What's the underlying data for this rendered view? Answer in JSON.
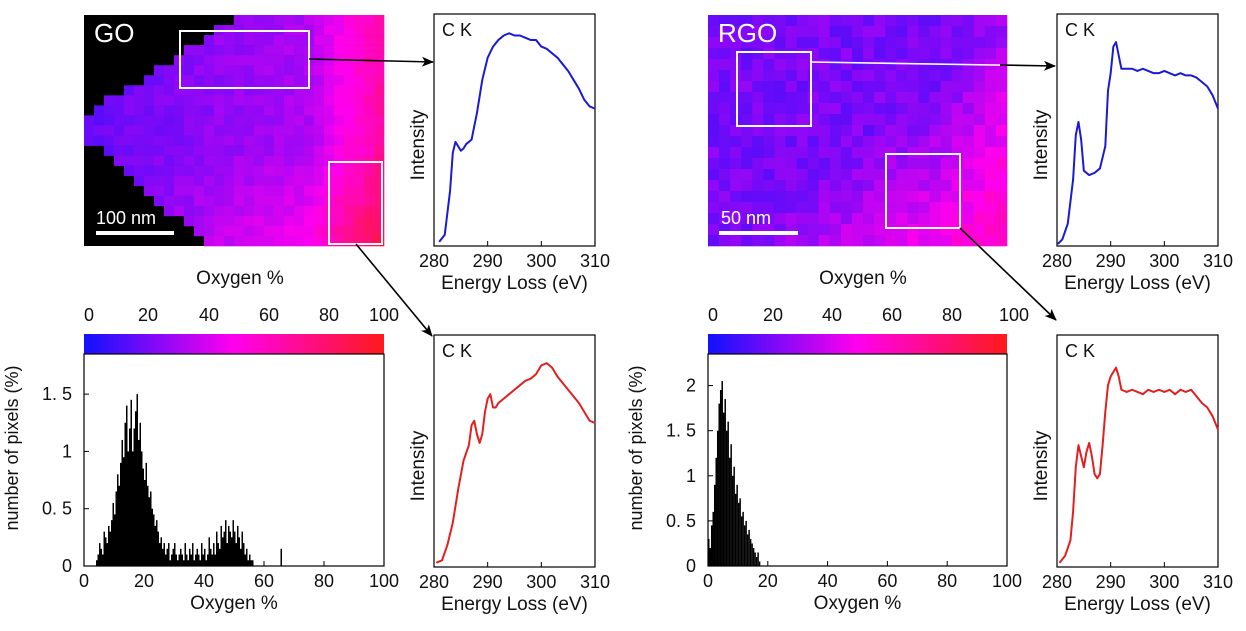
{
  "colors": {
    "blue": "#1a1ad6",
    "red": "#e41f1f",
    "axis": "#000000",
    "box": "#ffffff",
    "arrow": "#000000",
    "scale_from": "#1111ff",
    "scale_mid": "#ff00ee",
    "scale_to": "#ff1a1a"
  },
  "panels": [
    {
      "label": "GO",
      "scalebar": "100 nm",
      "colorbar_label": "Oxygen %",
      "colorbar_ticks": [
        "0",
        "20",
        "40",
        "60",
        "80",
        "100"
      ]
    },
    {
      "label": "RGO",
      "scalebar": "50 nm",
      "colorbar_label": "Oxygen %",
      "colorbar_ticks": [
        "0",
        "20",
        "40",
        "60",
        "80",
        "100"
      ]
    }
  ],
  "chart_data": [
    {
      "id": "go-spec-low",
      "type": "line",
      "title": "C K",
      "xlabel": "Energy Loss (eV)",
      "ylabel": "Intensity",
      "xlim": [
        280,
        310
      ],
      "x_ticks": [
        280,
        290,
        300,
        310
      ],
      "y_ticks": false,
      "color": "blue",
      "x": [
        281,
        282,
        283,
        283.5,
        284,
        284.5,
        285,
        285.5,
        286,
        287,
        288,
        289,
        290,
        291,
        292,
        293,
        294,
        295,
        296,
        297,
        298,
        299,
        300,
        301,
        302,
        303,
        304,
        305,
        306,
        307,
        308,
        309,
        310
      ],
      "y": [
        0.02,
        0.05,
        0.25,
        0.42,
        0.47,
        0.45,
        0.43,
        0.44,
        0.46,
        0.48,
        0.6,
        0.75,
        0.85,
        0.9,
        0.93,
        0.95,
        0.96,
        0.95,
        0.95,
        0.94,
        0.93,
        0.93,
        0.9,
        0.89,
        0.87,
        0.85,
        0.82,
        0.79,
        0.75,
        0.71,
        0.66,
        0.63,
        0.62
      ]
    },
    {
      "id": "go-spec-high",
      "type": "line",
      "title": "C K",
      "xlabel": "Energy Loss (eV)",
      "ylabel": "Intensity",
      "xlim": [
        280,
        310
      ],
      "x_ticks": [
        280,
        290,
        300,
        310
      ],
      "y_ticks": false,
      "color": "red",
      "x": [
        280.5,
        281.5,
        282.5,
        283.5,
        284.5,
        285.5,
        286.5,
        287,
        287.5,
        288,
        288.5,
        289,
        289.5,
        290,
        290.5,
        291,
        291.5,
        292,
        293,
        294,
        295,
        296,
        297,
        298,
        299,
        300,
        301,
        302,
        303,
        304,
        305,
        306,
        307,
        308,
        309,
        310
      ],
      "y": [
        0.02,
        0.03,
        0.1,
        0.2,
        0.35,
        0.48,
        0.55,
        0.64,
        0.66,
        0.6,
        0.56,
        0.6,
        0.7,
        0.76,
        0.78,
        0.72,
        0.72,
        0.74,
        0.76,
        0.78,
        0.8,
        0.82,
        0.84,
        0.85,
        0.87,
        0.91,
        0.92,
        0.9,
        0.86,
        0.83,
        0.8,
        0.77,
        0.74,
        0.7,
        0.66,
        0.65
      ]
    },
    {
      "id": "rgo-spec-low",
      "type": "line",
      "title": "C K",
      "xlabel": "Energy Loss (eV)",
      "ylabel": "Intensity",
      "xlim": [
        280,
        310
      ],
      "x_ticks": [
        280,
        290,
        300,
        310
      ],
      "y_ticks": false,
      "color": "blue",
      "x": [
        280.2,
        281,
        282,
        283,
        283.5,
        284,
        284.5,
        285,
        286,
        287,
        288,
        289,
        289.5,
        290,
        290.5,
        291,
        291.5,
        292,
        293,
        294,
        295,
        296,
        297,
        298,
        299,
        300,
        301,
        302,
        303,
        304,
        305,
        306,
        307,
        308,
        309,
        310
      ],
      "y": [
        0.01,
        0.03,
        0.1,
        0.3,
        0.5,
        0.56,
        0.48,
        0.34,
        0.32,
        0.33,
        0.35,
        0.45,
        0.7,
        0.78,
        0.9,
        0.92,
        0.86,
        0.8,
        0.8,
        0.8,
        0.79,
        0.8,
        0.79,
        0.78,
        0.78,
        0.79,
        0.78,
        0.77,
        0.78,
        0.77,
        0.77,
        0.76,
        0.74,
        0.72,
        0.68,
        0.62
      ]
    },
    {
      "id": "rgo-spec-high",
      "type": "line",
      "title": "C K",
      "xlabel": "Energy Loss (eV)",
      "ylabel": "Intensity",
      "xlim": [
        280,
        310
      ],
      "x_ticks": [
        280,
        290,
        300,
        310
      ],
      "y_ticks": false,
      "color": "red",
      "x": [
        280.5,
        281.5,
        282.5,
        283,
        283.5,
        284,
        284.5,
        285,
        285.5,
        286,
        286.5,
        287,
        287.5,
        288,
        288.5,
        289,
        289.5,
        290,
        290.5,
        291,
        291.5,
        292,
        293,
        294,
        295,
        296,
        297,
        298,
        299,
        300,
        301,
        302,
        303,
        304,
        305,
        306,
        307,
        308,
        309,
        310
      ],
      "y": [
        0.02,
        0.05,
        0.12,
        0.25,
        0.45,
        0.55,
        0.5,
        0.45,
        0.52,
        0.56,
        0.5,
        0.42,
        0.4,
        0.42,
        0.55,
        0.7,
        0.82,
        0.86,
        0.88,
        0.9,
        0.86,
        0.8,
        0.79,
        0.8,
        0.79,
        0.78,
        0.8,
        0.79,
        0.8,
        0.79,
        0.8,
        0.78,
        0.8,
        0.79,
        0.8,
        0.77,
        0.74,
        0.72,
        0.68,
        0.62
      ]
    },
    {
      "id": "go-hist",
      "type": "bar",
      "xlabel": "Oxygen %",
      "ylabel": "number of pixels (%)",
      "xlim": [
        0,
        100
      ],
      "ylim": [
        0,
        1.85
      ],
      "x_ticks": [
        0,
        20,
        40,
        60,
        80,
        100
      ],
      "y_ticks": [
        0,
        0.5,
        1,
        1.5
      ],
      "y_tick_labels": [
        "0",
        "0. 5",
        "1",
        "1. 5"
      ],
      "color": "axis",
      "bin_width": 0.5,
      "x_start": 4,
      "values": [
        0.05,
        0.1,
        0.2,
        0.15,
        0.1,
        0.3,
        0.25,
        0.2,
        0.35,
        0.3,
        0.4,
        0.55,
        0.45,
        0.65,
        0.8,
        0.7,
        0.9,
        1.1,
        0.95,
        1.25,
        1.4,
        1.0,
        1.2,
        1.45,
        1.0,
        1.2,
        1.35,
        1.5,
        1.1,
        1.25,
        1.0,
        0.85,
        0.75,
        0.9,
        0.7,
        0.6,
        0.65,
        0.5,
        0.45,
        0.35,
        0.4,
        0.3,
        0.2,
        0.25,
        0.15,
        0.2,
        0.1,
        0.15,
        0.2,
        0.05,
        0.1,
        0.15,
        0.2,
        0.1,
        0.05,
        0.1,
        0.15,
        0.1,
        0.05,
        0.2,
        0.1,
        0.05,
        0.15,
        0.1,
        0.2,
        0.05,
        0.1,
        0.15,
        0.1,
        0.05,
        0.2,
        0.1,
        0.15,
        0.05,
        0.1,
        0.25,
        0.15,
        0.1,
        0.2,
        0.1,
        0.3,
        0.2,
        0.15,
        0.35,
        0.25,
        0.3,
        0.4,
        0.2,
        0.35,
        0.3,
        0.25,
        0.4,
        0.3,
        0.2,
        0.35,
        0.25,
        0.15,
        0.3,
        0.2,
        0.1,
        0.15,
        0.05,
        0.1,
        0.05,
        0.05,
        0.0,
        0.0,
        0.0,
        0.0,
        0.0,
        0.0,
        0.0,
        0.0,
        0.0,
        0.0,
        0.0,
        0.0,
        0.0,
        0.0,
        0.0,
        0.0,
        0.0,
        0.0,
        0.15
      ]
    },
    {
      "id": "rgo-hist",
      "type": "bar",
      "xlabel": "Oxygen %",
      "ylabel": "number of pixels (%)",
      "xlim": [
        0,
        100
      ],
      "ylim": [
        0,
        2.35
      ],
      "x_ticks": [
        0,
        20,
        40,
        60,
        80,
        100
      ],
      "y_ticks": [
        0,
        0.5,
        1,
        1.5,
        2
      ],
      "y_tick_labels": [
        "0",
        "0. 5",
        "1",
        "1. 5",
        "2"
      ],
      "color": "axis",
      "bin_width": 0.5,
      "x_start": 0,
      "values": [
        0.3,
        0.2,
        0.45,
        0.6,
        0.9,
        1.2,
        1.5,
        1.8,
        1.95,
        2.05,
        1.7,
        1.85,
        1.5,
        1.6,
        1.2,
        1.35,
        1.0,
        1.1,
        0.8,
        0.9,
        0.7,
        0.75,
        0.55,
        0.6,
        0.45,
        0.5,
        0.35,
        0.4,
        0.3,
        0.25,
        0.2,
        0.15,
        0.1,
        0.15,
        0.05
      ]
    }
  ]
}
